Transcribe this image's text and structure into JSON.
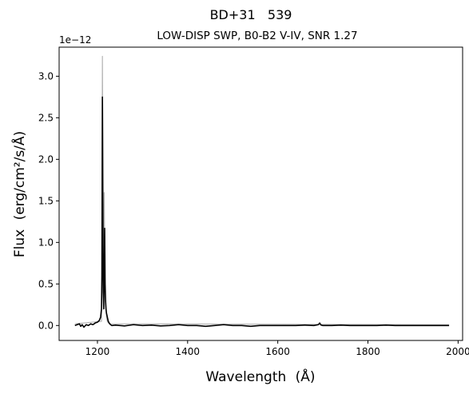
{
  "chart_data": {
    "type": "line",
    "title": "BD+31   539",
    "subtitle": "LOW-DISP SWP, B0-B2 V-IV, SNR 1.27",
    "xlabel": "Wavelength",
    "xlabel_unit": "(Å)",
    "ylabel": "Flux",
    "ylabel_unit": "(erg/cm²/s/Å)",
    "y_offset_label": "1e−12",
    "xlim": [
      1115,
      2010
    ],
    "ylim": [
      -0.18,
      3.35
    ],
    "y_scale_factor": 1e-12,
    "x_ticks": [
      1200,
      1400,
      1600,
      1800,
      2000
    ],
    "x_tick_labels": [
      "1200",
      "1400",
      "1600",
      "1800",
      "2000"
    ],
    "y_ticks": [
      0.0,
      0.5,
      1.0,
      1.5,
      2.0,
      2.5,
      3.0
    ],
    "y_tick_labels": [
      "0.0",
      "0.5",
      "1.0",
      "1.5",
      "2.0",
      "2.5",
      "3.0"
    ],
    "grid": false,
    "colors": {
      "flux": "#000000",
      "error": "#b4b4b4"
    },
    "series": [
      {
        "role": "error",
        "x": [
          1150,
          1209,
          1210,
          1211,
          1212,
          1213,
          1214,
          1215,
          1216,
          1217,
          1218,
          1219,
          1220,
          1222,
          1226,
          1980
        ],
        "y": [
          0.02,
          0.05,
          1.6,
          3.24,
          2.2,
          1.1,
          0.8,
          1.6,
          0.9,
          0.5,
          0.3,
          0.2,
          0.1,
          0.05,
          0.02,
          0.01
        ]
      },
      {
        "role": "flux",
        "x": [
          1150,
          1155,
          1160,
          1163,
          1166,
          1170,
          1175,
          1180,
          1185,
          1190,
          1195,
          1200,
          1204,
          1207,
          1209,
          1210,
          1211,
          1212,
          1213,
          1214,
          1215,
          1216,
          1217,
          1218,
          1219,
          1220,
          1222,
          1224,
          1226,
          1229,
          1232,
          1240,
          1260,
          1280,
          1300,
          1320,
          1340,
          1360,
          1380,
          1400,
          1420,
          1440,
          1460,
          1480,
          1500,
          1520,
          1540,
          1560,
          1580,
          1600,
          1620,
          1640,
          1660,
          1680,
          1690,
          1693,
          1696,
          1700,
          1720,
          1740,
          1760,
          1780,
          1800,
          1820,
          1840,
          1860,
          1880,
          1900,
          1920,
          1940,
          1960,
          1980
        ],
        "y": [
          0.0,
          0.01,
          0.02,
          -0.01,
          0.01,
          -0.02,
          0.01,
          0.0,
          0.02,
          0.01,
          0.03,
          0.04,
          0.06,
          0.1,
          0.2,
          0.6,
          2.75,
          1.5,
          0.4,
          0.2,
          0.6,
          1.17,
          0.5,
          0.3,
          0.2,
          0.15,
          0.1,
          0.05,
          0.03,
          0.01,
          0.0,
          0.005,
          -0.005,
          0.01,
          0.0,
          0.005,
          -0.005,
          0.0,
          0.01,
          0.0,
          0.0,
          -0.01,
          0.0,
          0.01,
          0.0,
          0.0,
          -0.01,
          0.0,
          0.0,
          0.0,
          0.0,
          0.0,
          0.005,
          0.0,
          0.01,
          0.03,
          0.005,
          0.0,
          0.0,
          0.005,
          0.0,
          0.0,
          0.0,
          0.0,
          0.005,
          0.0,
          0.0,
          0.0,
          0.0,
          0.0,
          0.0,
          0.0
        ]
      }
    ]
  }
}
